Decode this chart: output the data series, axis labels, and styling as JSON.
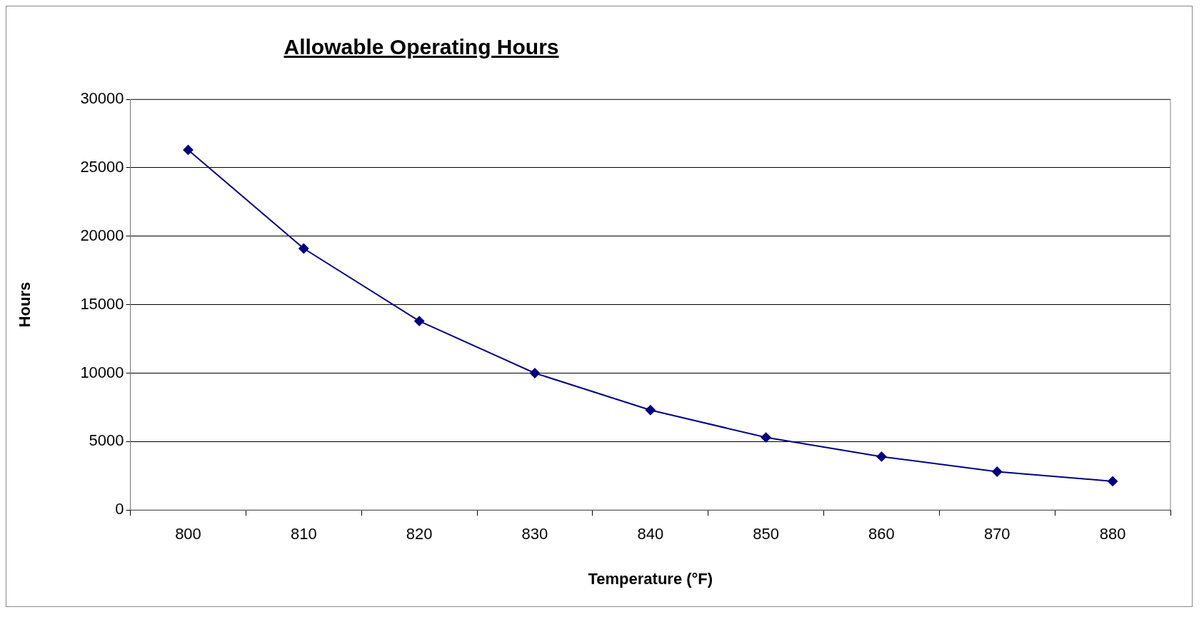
{
  "chart_data": {
    "type": "line",
    "title": "Allowable Operating Hours",
    "xlabel": "Temperature (°F)",
    "ylabel": "Hours",
    "categories": [
      "800",
      "810",
      "820",
      "830",
      "840",
      "850",
      "860",
      "870",
      "880"
    ],
    "series": [
      {
        "color": "#000080",
        "values": [
          26300,
          19100,
          13800,
          10000,
          7300,
          5300,
          3900,
          2800,
          2100
        ]
      }
    ],
    "ylim": [
      0,
      30000
    ],
    "yticks": [
      0,
      5000,
      10000,
      15000,
      20000,
      25000,
      30000
    ],
    "grid": "y",
    "legend": false,
    "marker": "diamond",
    "line_style": "solid"
  }
}
